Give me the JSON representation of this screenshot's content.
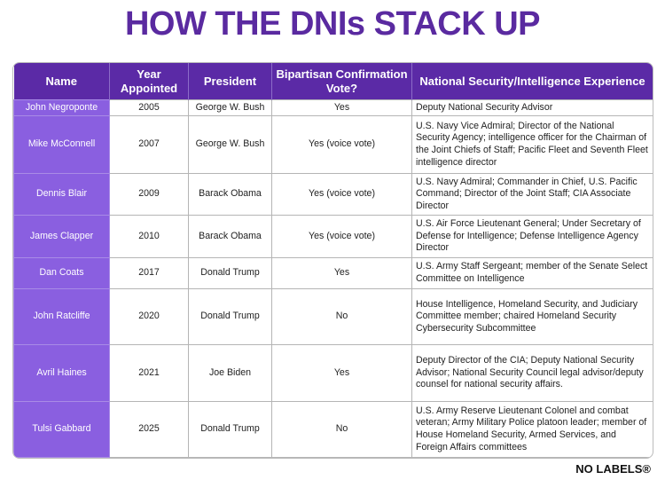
{
  "header": {
    "title": "HOW THE DNIs STACK UP"
  },
  "table": {
    "headers": [
      "Name",
      "Year Appointed",
      "President",
      "Bipartisan Confirmation Vote?",
      "National Security/Intelligence Experience"
    ],
    "rows": [
      [
        "John Negroponte",
        "2005",
        "George W. Bush",
        "Yes",
        "Deputy National Security Advisor"
      ],
      [
        "Mike McConnell",
        "2007",
        "George W. Bush",
        "Yes (voice vote)",
        "U.S. Navy Vice Admiral; Director of the National Security Agency; intelligence officer for the Chairman of the Joint Chiefs of Staff; Pacific Fleet and Seventh Fleet intelligence director"
      ],
      [
        "Dennis Blair",
        "2009",
        "Barack Obama",
        "Yes (voice vote)",
        "U.S. Navy Admiral; Commander in Chief, U.S. Pacific Command; Director of the Joint Staff; CIA Associate Director"
      ],
      [
        "James Clapper",
        "2010",
        "Barack Obama",
        "Yes (voice vote)",
        "U.S. Air Force Lieutenant General; Under Secretary of Defense for Intelligence; Defense Intelligence Agency Director"
      ],
      [
        "Dan Coats",
        "2017",
        "Donald Trump",
        "Yes",
        "U.S. Army Staff Sergeant; member of the Senate Select Committee on Intelligence"
      ],
      [
        "John Ratcliffe",
        "2020",
        "Donald Trump",
        "No",
        "House Intelligence, Homeland Security, and Judiciary Committee member; chaired Homeland Security Cybersecurity Subcommittee"
      ],
      [
        "Avril Haines",
        "2021",
        "Joe Biden",
        "Yes",
        "Deputy Director of the CIA; Deputy National Security Advisor; National Security Council legal advisor/deputy counsel for national security affairs."
      ],
      [
        "Tulsi Gabbard",
        "2025",
        "Donald Trump",
        "No",
        "U.S. Army Reserve Lieutenant Colonel and combat veteran; Army Military Police platoon leader; member of House Homeland Security, Armed Services, and Foreign Affairs committees"
      ]
    ]
  },
  "footer": {
    "brand": "NO LABELS®"
  }
}
